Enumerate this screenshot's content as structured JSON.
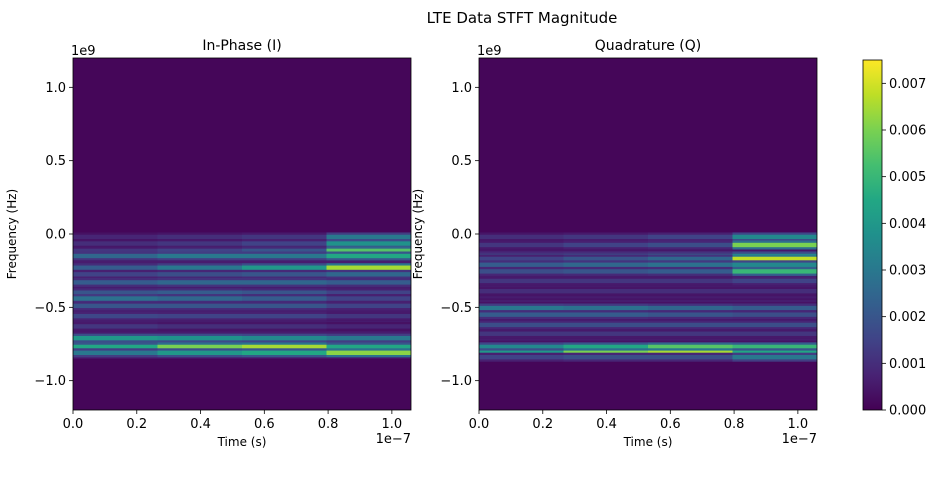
{
  "figure": {
    "suptitle": "LTE Data STFT Magnitude"
  },
  "chart_data": [
    {
      "type": "heatmap",
      "title": "In-Phase (I)",
      "xlabel": "Time (s)",
      "ylabel": "Frequency (Hz)",
      "x_offset_label": "1e−7",
      "y_offset_label": "1e9",
      "xlim": [
        0,
        1.06e-07
      ],
      "ylim": [
        -1200000000.0,
        1200000000.0
      ],
      "x_ticks": [
        0,
        2e-08,
        4e-08,
        6e-08,
        8e-08,
        1e-07
      ],
      "x_tick_labels": [
        "0.0",
        "0.2",
        "0.4",
        "0.6",
        "0.8",
        "1.0"
      ],
      "y_ticks": [
        -1000000000.0,
        -500000000.0,
        0,
        500000000.0,
        1000000000.0
      ],
      "y_tick_labels": [
        "−1.0",
        "−0.5",
        "0.0",
        "0.5",
        "1.0"
      ],
      "time_segments_s": [
        0,
        2.65e-08,
        5.3e-08,
        7.95e-08,
        1.06e-07
      ],
      "signal_band_hz": [
        -850000000.0,
        0
      ],
      "bands": [
        {
          "freq_hz": -20000000.0,
          "mag": [
            0.0008,
            0.001,
            0.0012,
            0.003
          ]
        },
        {
          "freq_hz": -65000000.0,
          "mag": [
            0.001,
            0.0012,
            0.0015,
            0.0038
          ]
        },
        {
          "freq_hz": -115000000.0,
          "mag": [
            0.0012,
            0.0015,
            0.002,
            0.0055
          ]
        },
        {
          "freq_hz": -150000000.0,
          "mag": [
            0.0025,
            0.003,
            0.003,
            0.0045
          ]
        },
        {
          "freq_hz": -230000000.0,
          "mag": [
            0.0022,
            0.003,
            0.004,
            0.0065
          ]
        },
        {
          "freq_hz": -275000000.0,
          "mag": [
            0.0015,
            0.0018,
            0.002,
            0.0025
          ]
        },
        {
          "freq_hz": -330000000.0,
          "mag": [
            0.0022,
            0.0025,
            0.0025,
            0.0022
          ]
        },
        {
          "freq_hz": -400000000.0,
          "mag": [
            0.002,
            0.0022,
            0.002,
            0.0015
          ]
        },
        {
          "freq_hz": -440000000.0,
          "mag": [
            0.0028,
            0.0025,
            0.0022,
            0.0015
          ]
        },
        {
          "freq_hz": -490000000.0,
          "mag": [
            0.002,
            0.002,
            0.002,
            0.0015
          ]
        },
        {
          "freq_hz": -560000000.0,
          "mag": [
            0.0016,
            0.0015,
            0.0015,
            0.0012
          ]
        },
        {
          "freq_hz": -630000000.0,
          "mag": [
            0.0012,
            0.001,
            0.001,
            0.0008
          ]
        },
        {
          "freq_hz": -710000000.0,
          "mag": [
            0.004,
            0.0038,
            0.0035,
            0.003
          ]
        },
        {
          "freq_hz": -770000000.0,
          "mag": [
            0.0045,
            0.006,
            0.0065,
            0.0045
          ]
        },
        {
          "freq_hz": -810000000.0,
          "mag": [
            0.003,
            0.004,
            0.0045,
            0.0062
          ]
        }
      ]
    },
    {
      "type": "heatmap",
      "title": "Quadrature (Q)",
      "xlabel": "Time (s)",
      "ylabel": "Frequency (Hz)",
      "x_offset_label": "1e−7",
      "y_offset_label": "1e9",
      "xlim": [
        0,
        1.06e-07
      ],
      "ylim": [
        -1200000000.0,
        1200000000.0
      ],
      "x_ticks": [
        0,
        2e-08,
        4e-08,
        6e-08,
        8e-08,
        1e-07
      ],
      "x_tick_labels": [
        "0.0",
        "0.2",
        "0.4",
        "0.6",
        "0.8",
        "1.0"
      ],
      "y_ticks": [
        -1000000000.0,
        -500000000.0,
        0,
        500000000.0,
        1000000000.0
      ],
      "y_tick_labels": [
        "−1.0",
        "−0.5",
        "0.0",
        "0.5",
        "1.0"
      ],
      "time_segments_s": [
        0,
        2.65e-08,
        5.3e-08,
        7.95e-08,
        1.06e-07
      ],
      "signal_band_hz": [
        -850000000.0,
        0
      ],
      "bands": [
        {
          "freq_hz": -20000000.0,
          "mag": [
            0.001,
            0.0012,
            0.0015,
            0.0035
          ]
        },
        {
          "freq_hz": -75000000.0,
          "mag": [
            0.0012,
            0.0015,
            0.0018,
            0.006
          ]
        },
        {
          "freq_hz": -150000000.0,
          "mag": [
            0.002,
            0.0022,
            0.0025,
            0.004
          ]
        },
        {
          "freq_hz": -170000000.0,
          "mag": [
            0.0015,
            0.002,
            0.0025,
            0.0068
          ]
        },
        {
          "freq_hz": -210000000.0,
          "mag": [
            0.0022,
            0.0025,
            0.0028,
            0.0035
          ]
        },
        {
          "freq_hz": -255000000.0,
          "mag": [
            0.0018,
            0.002,
            0.0022,
            0.005
          ]
        },
        {
          "freq_hz": -320000000.0,
          "mag": [
            0.0012,
            0.0012,
            0.0012,
            0.0015
          ]
        },
        {
          "freq_hz": -390000000.0,
          "mag": [
            0.001,
            0.001,
            0.001,
            0.001
          ]
        },
        {
          "freq_hz": -505000000.0,
          "mag": [
            0.003,
            0.0028,
            0.0025,
            0.0022
          ]
        },
        {
          "freq_hz": -550000000.0,
          "mag": [
            0.0022,
            0.0022,
            0.002,
            0.0018
          ]
        },
        {
          "freq_hz": -620000000.0,
          "mag": [
            0.0018,
            0.0018,
            0.0018,
            0.0018
          ]
        },
        {
          "freq_hz": -680000000.0,
          "mag": [
            0.0012,
            0.0012,
            0.0012,
            0.0012
          ]
        },
        {
          "freq_hz": -770000000.0,
          "mag": [
            0.0035,
            0.0045,
            0.0055,
            0.005
          ]
        },
        {
          "freq_hz": -810000000.0,
          "mag": [
            0.004,
            0.006,
            0.0065,
            0.0045
          ]
        },
        {
          "freq_hz": -840000000.0,
          "mag": [
            0.0015,
            0.0018,
            0.0018,
            0.003
          ]
        }
      ]
    }
  ],
  "colorbar": {
    "colormap": "viridis",
    "range": [
      0,
      0.0075
    ],
    "ticks": [
      0,
      0.001,
      0.002,
      0.003,
      0.004,
      0.005,
      0.006,
      0.007
    ],
    "tick_labels": [
      "0.000",
      "0.001",
      "0.002",
      "0.003",
      "0.004",
      "0.005",
      "0.006",
      "0.007"
    ]
  }
}
